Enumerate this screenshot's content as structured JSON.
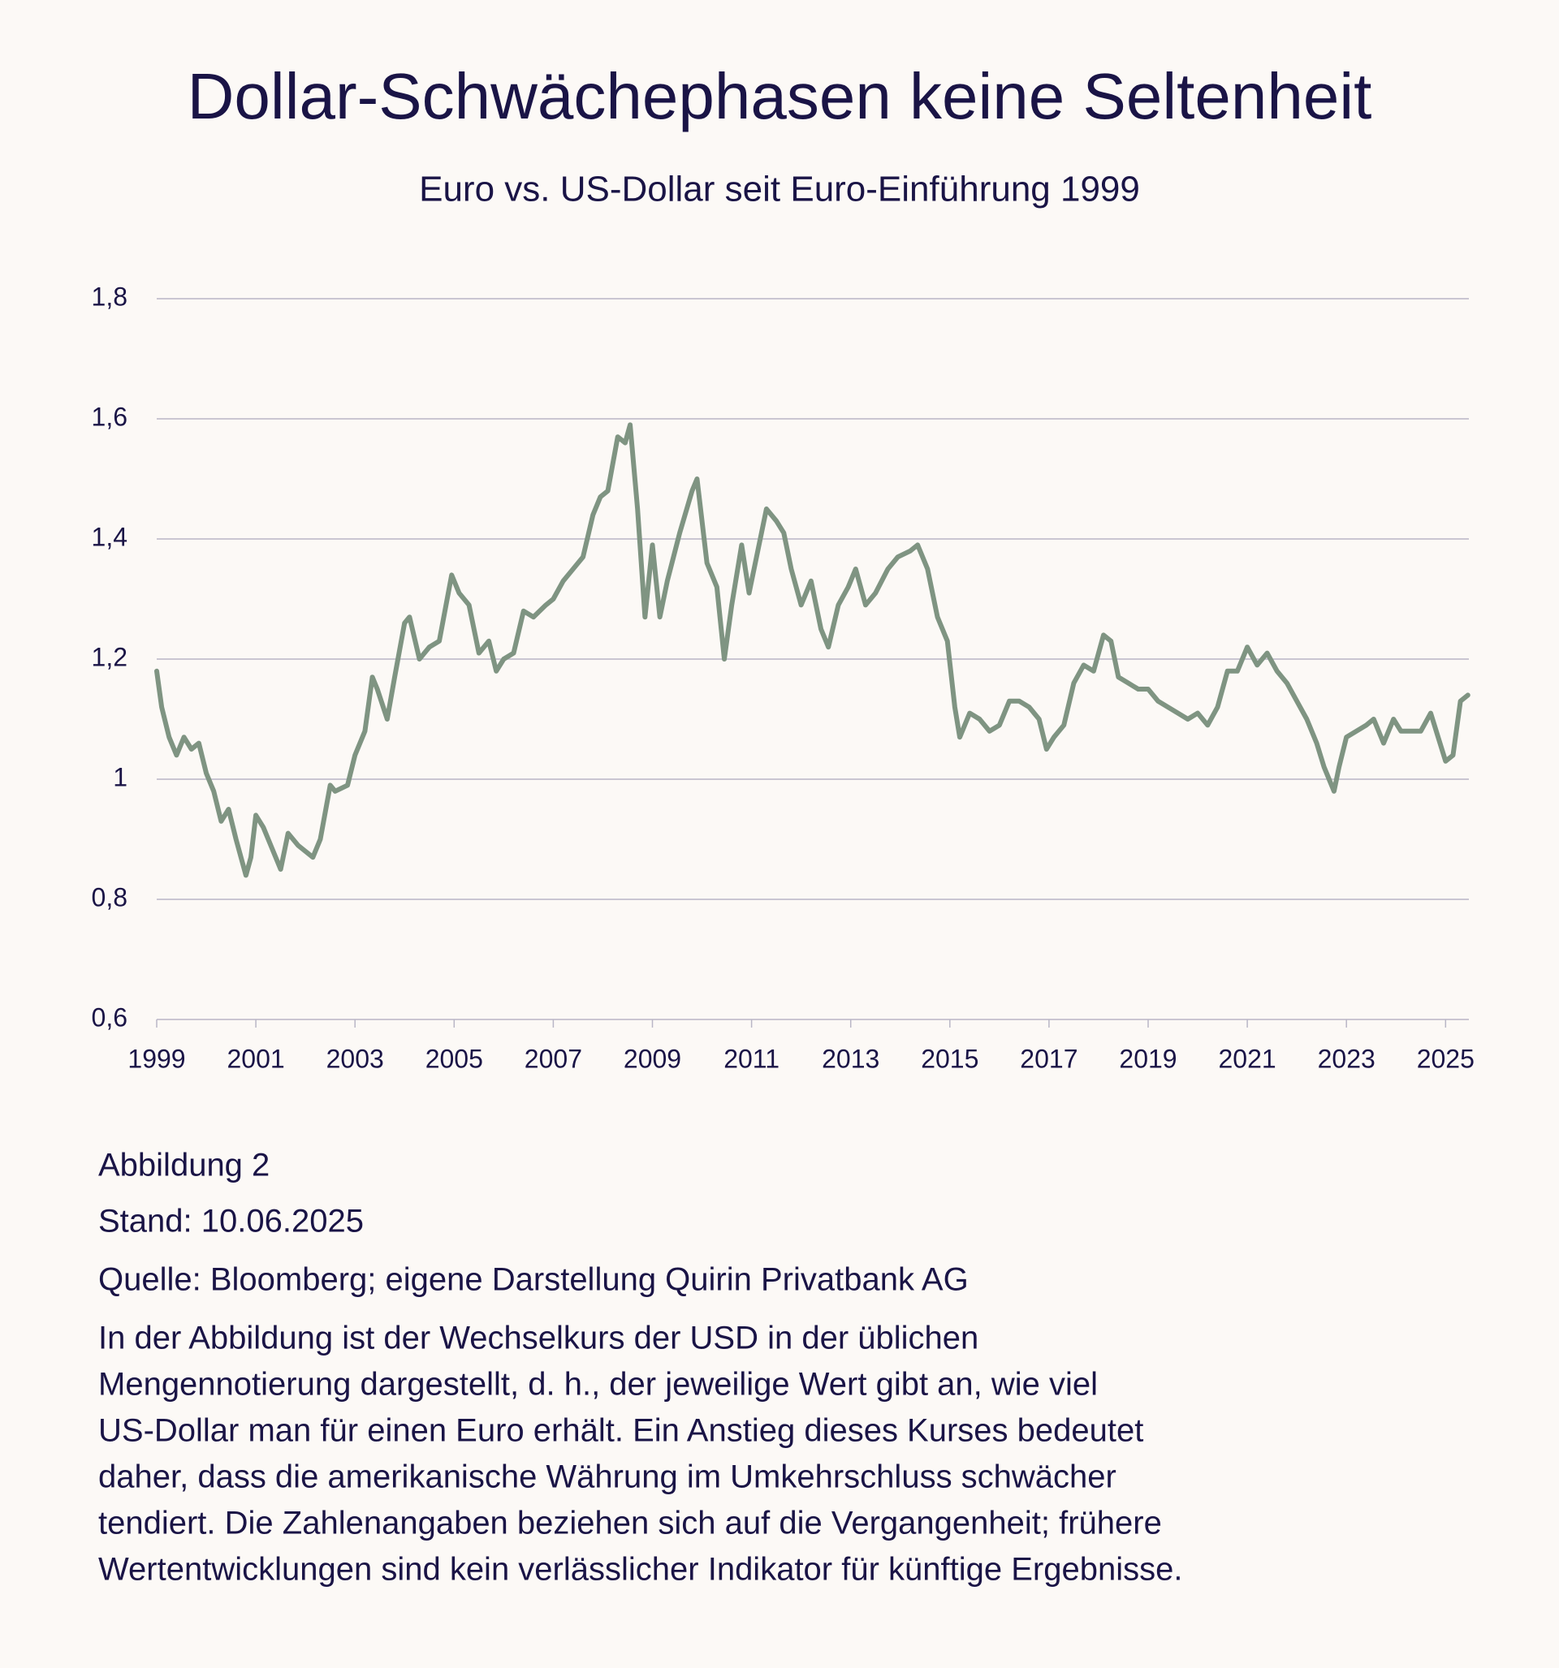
{
  "chart_data": {
    "type": "line",
    "title": "Dollar-Schwächephasen keine Seltenheit",
    "subtitle": "Euro vs. US-Dollar seit Euro-Einführung 1999",
    "color": "#7f9482",
    "grid": true,
    "xlim": [
      1999,
      2025.47
    ],
    "xticks": [
      1999,
      2001,
      2003,
      2005,
      2007,
      2009,
      2011,
      2013,
      2015,
      2017,
      2019,
      2021,
      2023,
      2025
    ],
    "ylim": [
      0.6,
      1.8
    ],
    "yticks": [
      {
        "value": 0.6,
        "label": "0,6"
      },
      {
        "value": 0.8,
        "label": "0,8"
      },
      1,
      {
        "value": 1.2,
        "label": "1,2"
      },
      {
        "value": 1.4,
        "label": "1,4"
      },
      {
        "value": 1.6,
        "label": "1,6"
      },
      {
        "value": 1.8,
        "label": "1,8"
      }
    ],
    "x": [
      1999.0,
      1999.1,
      1999.25,
      1999.4,
      1999.55,
      1999.7,
      1999.85,
      2000.0,
      2000.15,
      2000.3,
      2000.45,
      2000.6,
      2000.8,
      2000.9,
      2001.0,
      2001.15,
      2001.3,
      2001.5,
      2001.65,
      2001.85,
      2002.0,
      2002.15,
      2002.3,
      2002.5,
      2002.6,
      2002.85,
      2003.0,
      2003.2,
      2003.35,
      2003.45,
      2003.65,
      2003.8,
      2004.0,
      2004.1,
      2004.3,
      2004.5,
      2004.7,
      2004.95,
      2005.1,
      2005.3,
      2005.5,
      2005.7,
      2005.85,
      2006.0,
      2006.2,
      2006.4,
      2006.6,
      2006.85,
      2007.0,
      2007.2,
      2007.4,
      2007.6,
      2007.8,
      2007.95,
      2008.1,
      2008.3,
      2008.45,
      2008.55,
      2008.7,
      2008.85,
      2009.0,
      2009.15,
      2009.3,
      2009.55,
      2009.8,
      2009.9,
      2010.1,
      2010.3,
      2010.45,
      2010.6,
      2010.8,
      2010.95,
      2011.1,
      2011.3,
      2011.5,
      2011.65,
      2011.8,
      2012.0,
      2012.2,
      2012.4,
      2012.55,
      2012.75,
      2012.95,
      2013.1,
      2013.3,
      2013.5,
      2013.75,
      2013.95,
      2014.2,
      2014.35,
      2014.55,
      2014.75,
      2014.95,
      2015.1,
      2015.2,
      2015.4,
      2015.6,
      2015.8,
      2016.0,
      2016.2,
      2016.4,
      2016.6,
      2016.8,
      2016.95,
      2017.1,
      2017.3,
      2017.5,
      2017.7,
      2017.9,
      2018.1,
      2018.25,
      2018.4,
      2018.6,
      2018.8,
      2019.0,
      2019.2,
      2019.4,
      2019.6,
      2019.8,
      2020.0,
      2020.2,
      2020.4,
      2020.6,
      2020.8,
      2021.0,
      2021.2,
      2021.4,
      2021.6,
      2021.8,
      2022.0,
      2022.2,
      2022.4,
      2022.55,
      2022.75,
      2022.85,
      2023.0,
      2023.2,
      2023.4,
      2023.55,
      2023.75,
      2023.95,
      2024.1,
      2024.3,
      2024.5,
      2024.7,
      2024.85,
      2025.0,
      2025.15,
      2025.3,
      2025.45
    ],
    "values": [
      1.18,
      1.12,
      1.07,
      1.04,
      1.07,
      1.05,
      1.06,
      1.01,
      0.98,
      0.93,
      0.95,
      0.9,
      0.84,
      0.87,
      0.94,
      0.92,
      0.89,
      0.85,
      0.91,
      0.89,
      0.88,
      0.87,
      0.9,
      0.99,
      0.98,
      0.99,
      1.04,
      1.08,
      1.17,
      1.15,
      1.1,
      1.17,
      1.26,
      1.27,
      1.2,
      1.22,
      1.23,
      1.34,
      1.31,
      1.29,
      1.21,
      1.23,
      1.18,
      1.2,
      1.21,
      1.28,
      1.27,
      1.29,
      1.3,
      1.33,
      1.35,
      1.37,
      1.44,
      1.47,
      1.48,
      1.57,
      1.56,
      1.59,
      1.45,
      1.27,
      1.39,
      1.27,
      1.33,
      1.41,
      1.48,
      1.5,
      1.36,
      1.32,
      1.2,
      1.29,
      1.39,
      1.31,
      1.37,
      1.45,
      1.43,
      1.41,
      1.35,
      1.29,
      1.33,
      1.25,
      1.22,
      1.29,
      1.32,
      1.35,
      1.29,
      1.31,
      1.35,
      1.37,
      1.38,
      1.39,
      1.35,
      1.27,
      1.23,
      1.12,
      1.07,
      1.11,
      1.1,
      1.08,
      1.09,
      1.13,
      1.13,
      1.12,
      1.1,
      1.05,
      1.07,
      1.09,
      1.16,
      1.19,
      1.18,
      1.24,
      1.23,
      1.17,
      1.16,
      1.15,
      1.15,
      1.13,
      1.12,
      1.11,
      1.1,
      1.11,
      1.09,
      1.12,
      1.18,
      1.18,
      1.22,
      1.19,
      1.21,
      1.18,
      1.16,
      1.13,
      1.1,
      1.06,
      1.02,
      0.98,
      1.02,
      1.07,
      1.08,
      1.09,
      1.1,
      1.06,
      1.1,
      1.08,
      1.08,
      1.08,
      1.11,
      1.07,
      1.03,
      1.04,
      1.13,
      1.14
    ]
  },
  "notes": {
    "figure": "Abbildung 2",
    "date": "Stand: 10.06.2025",
    "source": "Quelle: Bloomberg; eigene Darstellung Quirin Privatbank AG",
    "description": [
      "In der Abbildung ist der Wechselkurs der USD in der üblichen",
      "Mengennotierung dargestellt, d. h., der jeweilige Wert gibt an, wie viel",
      "US-Dollar man für einen Euro erhält. Ein Anstieg dieses Kurses bedeutet",
      "daher, dass die amerikanische Währung im Umkehrschluss schwächer",
      "tendiert. Die Zahlenangaben beziehen sich auf die Vergangenheit; frühere",
      "Wertentwicklungen sind kein verlässlicher Indikator für künftige Ergebnisse."
    ]
  }
}
